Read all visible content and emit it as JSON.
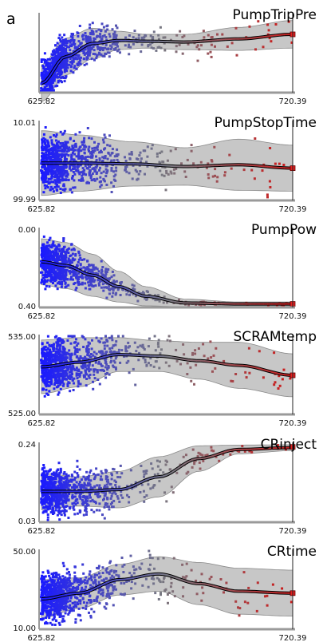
{
  "figure": {
    "panel_label": "a"
  },
  "chart_data": [
    {
      "type": "scatter",
      "title": "PumpTripPre",
      "xlim": [
        625.82,
        720.39
      ],
      "x_tick_labels": [
        "625.82",
        "720.39"
      ],
      "y_tick_labels": [],
      "trend": {
        "x": [
          625.82,
          635,
          645,
          655,
          665,
          680,
          700,
          720.39
        ],
        "y": [
          0.1,
          0.45,
          0.62,
          0.66,
          0.65,
          0.64,
          0.68,
          0.74
        ]
      },
      "band_half_width": [
        0.24,
        0.24,
        0.2,
        0.12,
        0.09,
        0.1,
        0.15,
        0.18
      ],
      "point_spread": [
        0.45,
        0.4,
        0.35,
        0.25,
        0.2,
        0.3,
        0.4,
        0.45
      ],
      "endpoint_y": 0.74
    },
    {
      "type": "scatter",
      "title": "PumpStopTime",
      "xlim": [
        625.82,
        720.39
      ],
      "x_tick_labels": [
        "625.82",
        "720.39"
      ],
      "y_tick_labels": [
        "10.01",
        "99.99"
      ],
      "ylim": [
        10.01,
        99.99
      ],
      "trend": {
        "x": [
          625.82,
          640,
          660,
          680,
          700,
          720.39
        ],
        "y": [
          52,
          52,
          51,
          48,
          50,
          46
        ]
      },
      "band_half_width": [
        38,
        33,
        26,
        22,
        30,
        27
      ],
      "point_spread": [
        48,
        46,
        44,
        42,
        44,
        44
      ],
      "endpoint_y": 46
    },
    {
      "type": "scatter",
      "title": "PumpPow",
      "xlim": [
        625.82,
        720.39
      ],
      "x_tick_labels": [
        "625.82",
        "720.39"
      ],
      "y_tick_labels": [
        "0.00",
        "0.40"
      ],
      "ylim": [
        0.0,
        0.4
      ],
      "trend": {
        "x": [
          625.82,
          635,
          645,
          655,
          665,
          680,
          700,
          720.39
        ],
        "y": [
          0.23,
          0.21,
          0.16,
          0.1,
          0.05,
          0.015,
          0.01,
          0.01
        ]
      },
      "band_half_width": [
        0.12,
        0.12,
        0.11,
        0.08,
        0.05,
        0.02,
        0.01,
        0.01
      ],
      "point_spread": [
        0.18,
        0.17,
        0.12,
        0.08,
        0.04,
        0.02,
        0.01,
        0.01
      ],
      "endpoint_y": 0.01
    },
    {
      "type": "scatter",
      "title": "SCRAMtemp",
      "xlim": [
        625.82,
        720.39
      ],
      "x_tick_labels": [
        "625.82",
        "720.39"
      ],
      "y_tick_labels": [
        "535.00",
        "525.00"
      ],
      "ylim": [
        525.0,
        535.0
      ],
      "trend": {
        "x": [
          625.82,
          640,
          655,
          670,
          685,
          700,
          720.39
        ],
        "y": [
          531.0,
          531.6,
          532.6,
          532.4,
          531.8,
          531.2,
          529.9
        ]
      },
      "band_half_width": [
        3.5,
        3.2,
        2.2,
        2.0,
        2.4,
        3.0,
        2.8
      ],
      "point_spread": [
        5.0,
        5.0,
        4.6,
        4.2,
        4.5,
        4.8,
        5.0
      ],
      "endpoint_y": 529.9
    },
    {
      "type": "scatter",
      "title": "CRinject",
      "xlim": [
        625.82,
        720.39
      ],
      "x_tick_labels": [
        "625.82",
        "720.39"
      ],
      "y_tick_labels": [
        "0.24",
        "0.03"
      ],
      "ylim": [
        0.03,
        0.24
      ],
      "trend": {
        "x": [
          625.82,
          640,
          655,
          670,
          685,
          700,
          720.39
        ],
        "y": [
          0.11,
          0.11,
          0.115,
          0.15,
          0.2,
          0.225,
          0.23
        ]
      },
      "band_half_width": [
        0.05,
        0.04,
        0.05,
        0.055,
        0.035,
        0.012,
        0.008
      ],
      "point_spread": [
        0.1,
        0.1,
        0.1,
        0.09,
        0.06,
        0.02,
        0.015
      ],
      "endpoint_y": 0.232
    },
    {
      "type": "scatter",
      "title": "CRtime",
      "xlim": [
        625.82,
        720.39
      ],
      "x_tick_labels": [
        "625.82",
        "720.39"
      ],
      "y_tick_labels": [
        "50.00",
        "10.00"
      ],
      "ylim": [
        10.0,
        50.0
      ],
      "trend": {
        "x": [
          625.82,
          640,
          655,
          670,
          685,
          700,
          720.39
        ],
        "y": [
          25,
          28,
          35,
          38,
          33,
          29,
          28
        ]
      },
      "band_half_width": [
        10,
        8,
        8,
        9,
        11,
        12,
        12
      ],
      "point_spread": [
        20,
        20,
        19,
        18,
        18,
        19,
        20
      ],
      "endpoint_y": 28
    }
  ],
  "colors": {
    "low": "#1a1aff",
    "high": "#c81e1e",
    "band": "#b4b4b4",
    "axis": "#9a9a9a"
  }
}
